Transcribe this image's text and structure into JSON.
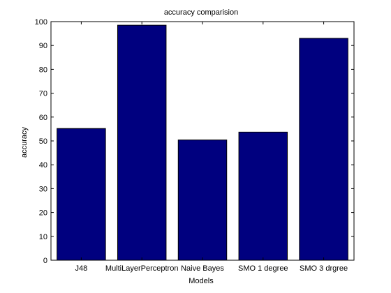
{
  "chart_data": {
    "type": "bar",
    "title": "accuracy comparision",
    "xlabel": "Models",
    "ylabel": "accuracy",
    "categories": [
      "J48",
      "MultiLayerPerceptron",
      "Naive Bayes",
      "SMO 1 degree",
      "SMO 3 drgree"
    ],
    "values": [
      55.2,
      98.5,
      50.4,
      53.7,
      93.0
    ],
    "ylim": [
      0,
      100
    ],
    "yticks": [
      0,
      10,
      20,
      30,
      40,
      50,
      60,
      70,
      80,
      90,
      100
    ],
    "grid": false,
    "bar_color": "#00007f",
    "bar_edge_color": "#000000"
  }
}
